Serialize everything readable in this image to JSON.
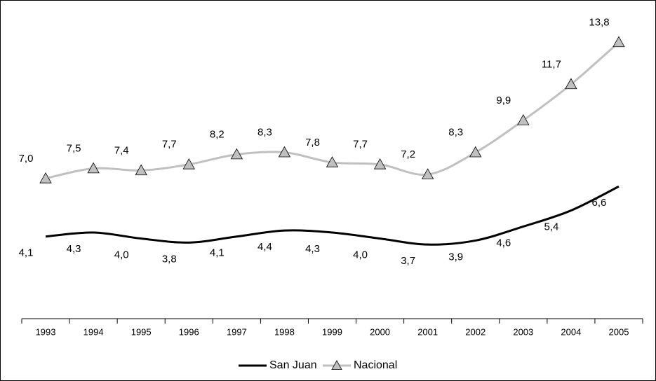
{
  "chart_data": {
    "type": "line",
    "categories": [
      "1993",
      "1994",
      "1995",
      "1996",
      "1997",
      "1998",
      "1999",
      "2000",
      "2001",
      "2002",
      "2003",
      "2004",
      "2005"
    ],
    "series": [
      {
        "name": "San Juan",
        "color": "#000000",
        "marker": "none",
        "values": [
          4.1,
          4.3,
          4.0,
          3.8,
          4.1,
          4.4,
          4.3,
          4.0,
          3.7,
          3.9,
          4.6,
          5.4,
          6.6
        ],
        "value_labels": [
          "4,1",
          "4,3",
          "4,0",
          "3,8",
          "4,1",
          "4,4",
          "4,3",
          "4,0",
          "3,7",
          "3,9",
          "4,6",
          "5,4",
          "6,6"
        ]
      },
      {
        "name": "Nacional",
        "color": "#c0c0c0",
        "marker": "triangle",
        "values": [
          7.0,
          7.5,
          7.4,
          7.7,
          8.2,
          8.3,
          7.8,
          7.7,
          7.2,
          8.3,
          9.9,
          11.7,
          13.8
        ],
        "value_labels": [
          "7,0",
          "7,5",
          "7,4",
          "7,7",
          "8,2",
          "8,3",
          "7,8",
          "7,7",
          "7,2",
          "8,3",
          "9,9",
          "11,7",
          "13,8"
        ]
      }
    ],
    "ylim": [
      0,
      15
    ],
    "legend": "bottom",
    "smooth": true
  }
}
